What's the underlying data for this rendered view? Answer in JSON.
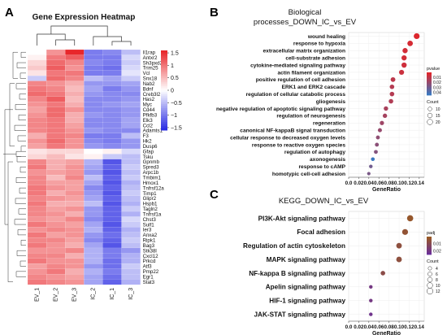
{
  "chart_data": [
    {
      "panel": "A",
      "type": "heatmap",
      "title": "Gene Expression Heatmap",
      "columns": [
        "EV_1",
        "EV_2",
        "EV_3",
        "IC_2",
        "IC_1",
        "IC_3"
      ],
      "rows": [
        "Il1rap",
        "Antxr2",
        "Sh3pxd2b",
        "Trim25",
        "Vcl",
        "Snx18",
        "Nab2",
        "Bdnf",
        "Creb3l2",
        "Has2",
        "Myc",
        "Cd44",
        "Pfkfb3",
        "Elk3",
        "Ccl2",
        "Adamts1",
        "F3",
        "Hk2",
        "Dusp6",
        "Gfap",
        "Tsku",
        "Gpnmb",
        "Spred3",
        "Arpc1b",
        "Tmbim1",
        "Hmox1",
        "Tnfrsf12a",
        "Timp1",
        "Glipr2",
        "Hspb1",
        "Tagln2",
        "Tnfrsf1a",
        "Chst3",
        "Sulf1",
        "Ier3",
        "Anxa2",
        "Ripk1",
        "Bag3",
        "Stk38l",
        "Cxcl12",
        "Prkcd",
        "Atf3",
        "Pmp22",
        "Egr1",
        "Stat3"
      ],
      "colorbar": {
        "ticks": [
          1.5,
          1,
          0.5,
          0,
          -0.5,
          -1,
          -1.5
        ],
        "tick_labels": [
          "1.5",
          "1",
          "0.5",
          "0",
          "−0.5",
          "−1",
          "−1.5"
        ],
        "high_color": "#e8272b",
        "mid_color": "#ffffff",
        "low_color": "#2c2ee3"
      },
      "values": [
        [
          0.0,
          0.8,
          1.6,
          -1.0,
          -0.9,
          -0.5
        ],
        [
          0.1,
          1.0,
          1.2,
          -1.0,
          -1.0,
          -0.3
        ],
        [
          0.3,
          1.1,
          0.9,
          -0.9,
          -1.0,
          -0.4
        ],
        [
          0.4,
          1.2,
          0.8,
          -1.0,
          -1.1,
          -0.3
        ],
        [
          0.2,
          1.0,
          1.0,
          -1.0,
          -1.0,
          -0.2
        ],
        [
          -0.4,
          1.1,
          0.9,
          -0.5,
          -0.7,
          -0.4
        ],
        [
          0.9,
          0.8,
          0.6,
          -0.8,
          -0.8,
          -0.7
        ],
        [
          1.0,
          0.9,
          0.5,
          -0.7,
          -1.0,
          -0.8
        ],
        [
          1.1,
          1.0,
          0.6,
          -0.8,
          -0.9,
          -0.9
        ],
        [
          0.9,
          1.2,
          0.5,
          -0.9,
          -0.9,
          -0.8
        ],
        [
          0.8,
          1.0,
          0.6,
          -0.9,
          -0.8,
          -0.7
        ],
        [
          0.7,
          1.1,
          0.8,
          -0.9,
          -0.9,
          -0.8
        ],
        [
          0.8,
          1.1,
          0.6,
          -0.8,
          -0.9,
          -0.8
        ],
        [
          0.9,
          1.0,
          0.6,
          -0.9,
          -0.9,
          -0.7
        ],
        [
          0.9,
          1.0,
          0.7,
          -0.9,
          -0.9,
          -0.7
        ],
        [
          0.9,
          1.0,
          0.8,
          -0.8,
          -0.9,
          -0.9
        ],
        [
          0.6,
          1.0,
          0.9,
          -1.0,
          -1.0,
          -0.5
        ],
        [
          0.8,
          1.1,
          0.8,
          -0.9,
          -1.0,
          -0.8
        ],
        [
          0.7,
          1.0,
          0.8,
          -0.8,
          -0.9,
          -0.8
        ],
        [
          0.2,
          0.3,
          0.3,
          0.0,
          0.1,
          -0.3
        ],
        [
          0.3,
          0.5,
          0.2,
          0.1,
          -0.4,
          -0.5
        ],
        [
          0.9,
          0.6,
          0.7,
          -0.6,
          -1.3,
          -0.5
        ],
        [
          1.0,
          0.6,
          0.8,
          -0.7,
          -1.2,
          -0.4
        ],
        [
          0.8,
          0.7,
          0.8,
          -0.8,
          -1.3,
          -0.5
        ],
        [
          0.9,
          0.5,
          0.9,
          -0.5,
          -1.2,
          -0.4
        ],
        [
          0.9,
          0.7,
          0.7,
          -0.7,
          -1.3,
          -0.6
        ],
        [
          1.0,
          0.8,
          0.7,
          -0.9,
          -1.2,
          -0.5
        ],
        [
          1.0,
          0.6,
          0.8,
          -0.8,
          -1.3,
          -0.4
        ],
        [
          0.9,
          0.8,
          0.7,
          -0.7,
          -1.2,
          -0.5
        ],
        [
          1.0,
          0.6,
          0.6,
          -0.5,
          -1.3,
          -0.6
        ],
        [
          0.9,
          0.7,
          0.8,
          -0.8,
          -1.2,
          -0.4
        ],
        [
          0.9,
          0.8,
          0.6,
          -0.8,
          -1.2,
          -0.6
        ],
        [
          0.8,
          0.7,
          0.9,
          -0.9,
          -1.2,
          -0.3
        ],
        [
          1.0,
          0.8,
          0.7,
          -0.7,
          -1.3,
          -0.4
        ],
        [
          0.8,
          0.9,
          0.8,
          -0.6,
          -1.2,
          -0.6
        ],
        [
          1.0,
          0.7,
          0.8,
          -0.8,
          -1.1,
          -0.5
        ],
        [
          0.9,
          0.9,
          0.7,
          -0.9,
          -1.2,
          -0.4
        ],
        [
          1.0,
          0.8,
          0.6,
          -0.7,
          -1.3,
          -0.5
        ],
        [
          0.8,
          0.8,
          0.9,
          -0.6,
          -1.0,
          -0.8
        ],
        [
          0.9,
          0.9,
          0.6,
          -0.6,
          -1.0,
          -0.6
        ],
        [
          1.0,
          0.8,
          0.8,
          -0.6,
          -1.1,
          -0.6
        ],
        [
          0.7,
          0.9,
          0.8,
          -0.8,
          -1.1,
          -0.4
        ],
        [
          0.8,
          1.0,
          0.6,
          -0.6,
          -1.0,
          -0.5
        ],
        [
          0.9,
          0.8,
          0.7,
          -0.7,
          -1.1,
          -0.5
        ],
        [
          1.0,
          0.9,
          0.8,
          -0.7,
          -1.2,
          -0.6
        ]
      ]
    },
    {
      "panel": "B",
      "type": "scatter",
      "title": "Biological processes_DOWN_IC_vs_EV",
      "title_lines": [
        "Biological",
        "processes_DOWN_IC_vs_EV"
      ],
      "xlabel": "GeneRatio",
      "ylabel": "",
      "xlim": [
        0.0,
        0.15
      ],
      "x_ticks": [
        0.0,
        0.02,
        0.04,
        0.06,
        0.08,
        0.1,
        0.12,
        0.14
      ],
      "x_tick_labels": [
        "0.0",
        "0.02",
        "0.04",
        "0.06",
        "0.08",
        "0.10",
        "0.12",
        "0.14"
      ],
      "categories": [
        "wound healing",
        "response to hypoxia",
        "extracellular matrix organization",
        "cell-substrate adhesion",
        "cytokine-mediated signaling pathway",
        "actin filament organization",
        "positive regulation of cell adhesion",
        "ERK1 and ERK2 cascade",
        "regulation of cellular catabolic process",
        "gliogenesis",
        "negative regulation of apoptotic signaling pathway",
        "regulation of neurogenesis",
        "regeneration",
        "canonical NF-kappaB signal transduction",
        "cellular response to decreased oxygen levels",
        "response to reactive oxygen species",
        "regulation of autophagy",
        "axonogenesis",
        "response to cAMP",
        "homotypic cell-cell adhesion"
      ],
      "x": [
        0.135,
        0.122,
        0.112,
        0.11,
        0.11,
        0.105,
        0.088,
        0.086,
        0.086,
        0.084,
        0.074,
        0.072,
        0.066,
        0.062,
        0.058,
        0.056,
        0.054,
        0.048,
        0.044,
        0.04
      ],
      "pvalue": [
        0.001,
        0.003,
        0.004,
        0.004,
        0.005,
        0.006,
        0.01,
        0.012,
        0.012,
        0.013,
        0.015,
        0.016,
        0.018,
        0.02,
        0.022,
        0.023,
        0.025,
        0.045,
        0.03,
        0.028
      ],
      "count": [
        22,
        20,
        18,
        18,
        18,
        17,
        15,
        14,
        14,
        14,
        13,
        13,
        12,
        11,
        10,
        10,
        10,
        9,
        8,
        7
      ],
      "legend": {
        "color_title": "pvalue",
        "color_ticks": [
          0.01,
          0.02,
          0.03,
          0.04
        ],
        "color_tick_labels": [
          "0.01",
          "0.02",
          "0.03",
          "0.04"
        ],
        "color_min": 0.0,
        "color_max": 0.045,
        "low_p_color": "#e0252a",
        "high_p_color": "#3a78c0",
        "size_title": "Count",
        "size_values": [
          10,
          15,
          20
        ],
        "size_labels": [
          "10",
          "15",
          "20"
        ],
        "placement": "right"
      }
    },
    {
      "panel": "C",
      "type": "scatter",
      "title": "KEGG_DOWN_IC_vs_EV",
      "xlabel": "GeneRatio",
      "ylabel": "",
      "xlim": [
        0.0,
        0.15
      ],
      "x_ticks": [
        0.0,
        0.02,
        0.04,
        0.06,
        0.08,
        0.1,
        0.12,
        0.14
      ],
      "x_tick_labels": [
        "0.0",
        "0.02",
        "0.04",
        "0.06",
        "0.08",
        "0.10",
        "0.12",
        "0.14"
      ],
      "categories": [
        "PI3K-Akt signaling pathway",
        "Focal adhesion",
        "Regulation of actin cytoskeleton",
        "MAPK signaling pathway",
        "NF-kappa B signaling pathway",
        "Apelin signaling pathway",
        "HIF-1 signaling pathway",
        "JAK-STAT signaling pathway"
      ],
      "x": [
        0.122,
        0.112,
        0.1,
        0.1,
        0.068,
        0.044,
        0.044,
        0.044
      ],
      "padj": [
        0.002,
        0.004,
        0.006,
        0.006,
        0.008,
        0.02,
        0.02,
        0.022
      ],
      "count": [
        12,
        11,
        10,
        10,
        7,
        4,
        4,
        4
      ],
      "legend": {
        "color_title": "padj",
        "color_ticks": [
          0.01,
          0.02
        ],
        "color_tick_labels": [
          "0.01",
          "0.02"
        ],
        "color_min": 0.0,
        "color_max": 0.025,
        "low_p_color": "#9a5a22",
        "high_p_color": "#6a2f9a",
        "size_title": "Count",
        "size_values": [
          4,
          6,
          8,
          10,
          12
        ],
        "size_labels": [
          "4",
          "6",
          "8",
          "10",
          "12"
        ],
        "placement": "right"
      }
    }
  ]
}
